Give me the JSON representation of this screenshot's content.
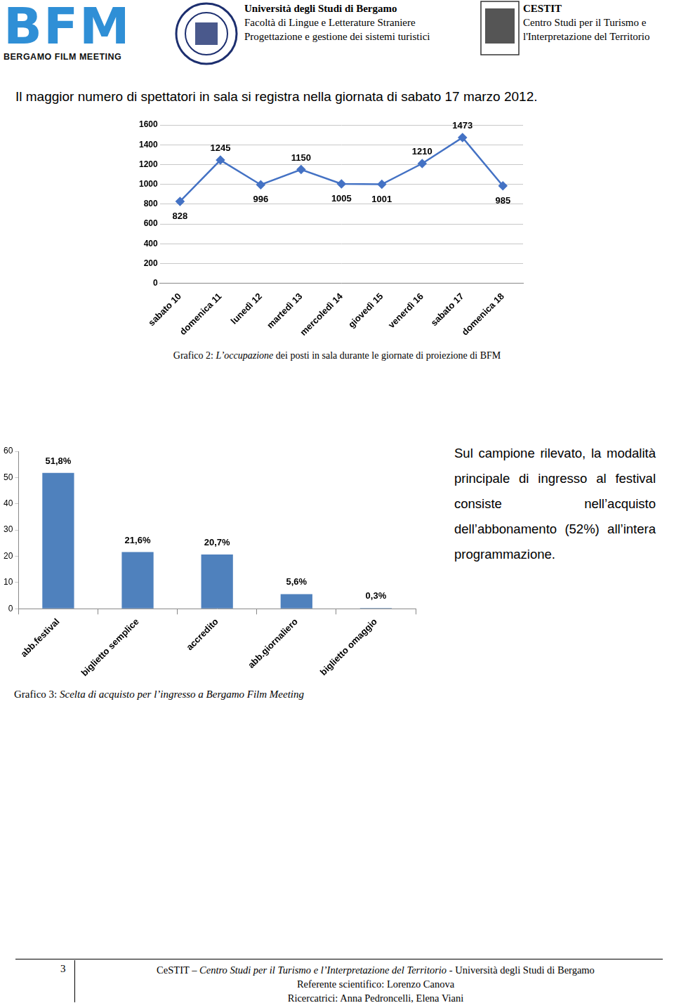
{
  "header": {
    "logo": {
      "mark": "BFM",
      "name": "BERGAMO FILM MEETING"
    },
    "university": [
      "Università degli Studi di Bergamo",
      "Facoltà di Lingue e Letterature Straniere",
      "Progettazione e gestione dei sistemi turistici"
    ],
    "centre": [
      "CESTIT",
      "Centro Studi per il Turismo e",
      "l'Interpretazione del Territorio"
    ]
  },
  "intro": "Il maggior numero di spettatori in sala si registra nella giornata di sabato 17 marzo 2012.",
  "chart_data": [
    {
      "type": "line",
      "categories": [
        "sabato 10",
        "domenica 11",
        "lunedì 12",
        "martedì 13",
        "mercoledì 14",
        "giovedì 15",
        "venerdì 16",
        "sabato 17",
        "domenica 18"
      ],
      "values": [
        828,
        1245,
        996,
        1150,
        1005,
        1001,
        1210,
        1473,
        985
      ],
      "color": "#4472c4",
      "marker": "diamond",
      "ylim": [
        0,
        1600
      ],
      "yticks": [
        0,
        200,
        400,
        600,
        800,
        1000,
        1200,
        1400,
        1600
      ],
      "grid": true,
      "data_labels": true
    },
    {
      "type": "bar",
      "categories": [
        "abb.festival",
        "biglietto semplice",
        "accredito",
        "abb.giornaliero",
        "biglietto omaggio"
      ],
      "values": [
        51.8,
        21.6,
        20.7,
        5.6,
        0.3
      ],
      "value_labels": [
        "51,8%",
        "21,6%",
        "20,7%",
        "5,6%",
        "0,3%"
      ],
      "color": "#4f81bd",
      "ylim": [
        0,
        60
      ],
      "yticks": [
        0,
        10,
        20,
        30,
        40,
        50,
        60
      ],
      "grid": false,
      "data_labels": true
    }
  ],
  "captions": [
    {
      "label": "Grafico 2:",
      "italic": "L’occupazione",
      "rest": "dei posti in sala durante le giornate di proiezione di BFM"
    },
    {
      "label": "Grafico 3:",
      "italic": "Scelta di acquisto per l’ingresso a Bergamo Film Meeting",
      "rest": null
    }
  ],
  "side_text": "Sul campione rilevato, la modalità principale di ingresso al festival consiste nell’acquisto dell’abbonamento (52%) all’intera programmazione.",
  "footer": {
    "page": "3",
    "lines": [
      {
        "bold": "CeSTIT",
        "italic": "– Centro Studi per il Turismo e l’Interpretazione del Territorio",
        "rest": "- Università degli Studi di Bergamo"
      },
      {
        "bold": null,
        "italic": null,
        "rest": "Referente scientifico: Lorenzo Canova"
      },
      {
        "bold": null,
        "italic": null,
        "rest": "Ricercatrici: Anna Pedroncelli, Elena Viani"
      }
    ]
  }
}
